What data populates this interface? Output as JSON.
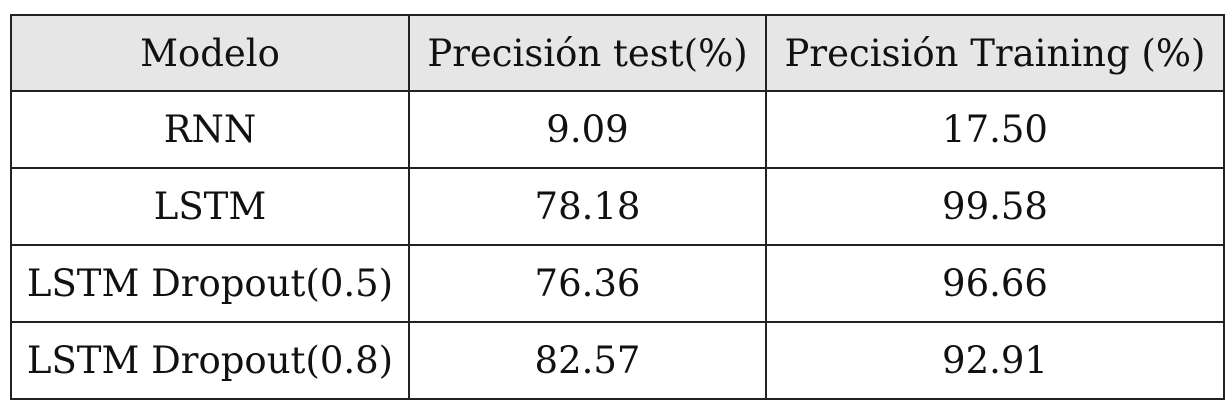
{
  "table": {
    "headers": [
      "Modelo",
      "Precisión test(%)",
      "Precisión Training (%)"
    ],
    "rows": [
      [
        "RNN",
        "9.09",
        "17.50"
      ],
      [
        "LSTM",
        "78.18",
        "99.58"
      ],
      [
        "LSTM Dropout(0.5)",
        "76.36",
        "96.66"
      ],
      [
        "LSTM Dropout(0.8)",
        "82.57",
        "92.91"
      ]
    ],
    "header_background": "#e6e6e6",
    "border_color": "#222222"
  }
}
